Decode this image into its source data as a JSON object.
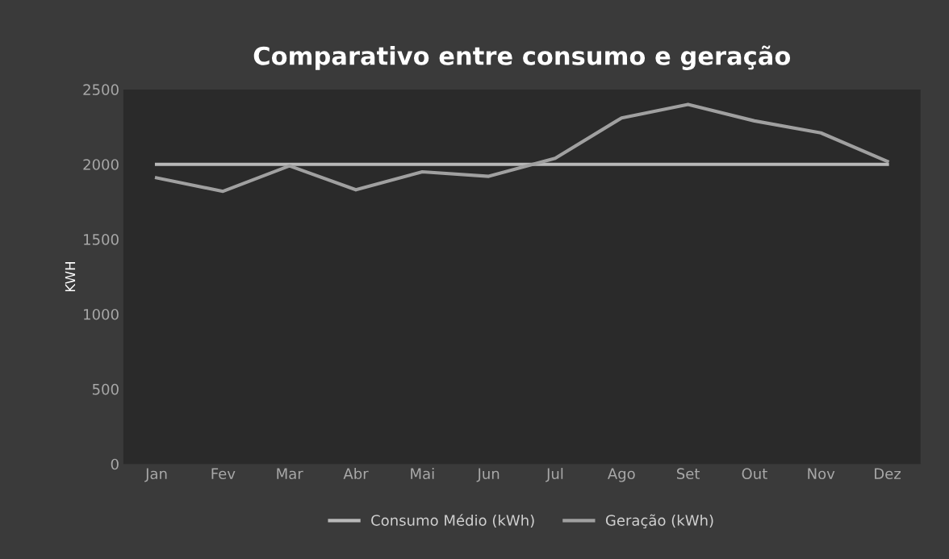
{
  "chart_data": {
    "type": "line",
    "title": "Comparativo entre consumo e geração",
    "ylabel": "KWH",
    "categories": [
      "Jan",
      "Fev",
      "Mar",
      "Abr",
      "Mai",
      "Jun",
      "Jul",
      "Ago",
      "Set",
      "Out",
      "Nov",
      "Dez"
    ],
    "series": [
      {
        "name": "Consumo Médio (kWh)",
        "color": "#b8b8b8",
        "values": [
          2000,
          2000,
          2000,
          2000,
          2000,
          2000,
          2000,
          2000,
          2000,
          2000,
          2000,
          2000
        ]
      },
      {
        "name": "Geração (kWh)",
        "color": "#a0a0a0",
        "values": [
          1910,
          1820,
          1990,
          1830,
          1950,
          1920,
          2040,
          2310,
          2400,
          2290,
          2210,
          2020
        ]
      }
    ],
    "ylim": [
      0,
      2500
    ],
    "yticks": [
      0,
      500,
      1000,
      1500,
      2000,
      2500
    ],
    "grid": false,
    "legend": "bottom",
    "marker": "none",
    "line_style": "solid"
  }
}
